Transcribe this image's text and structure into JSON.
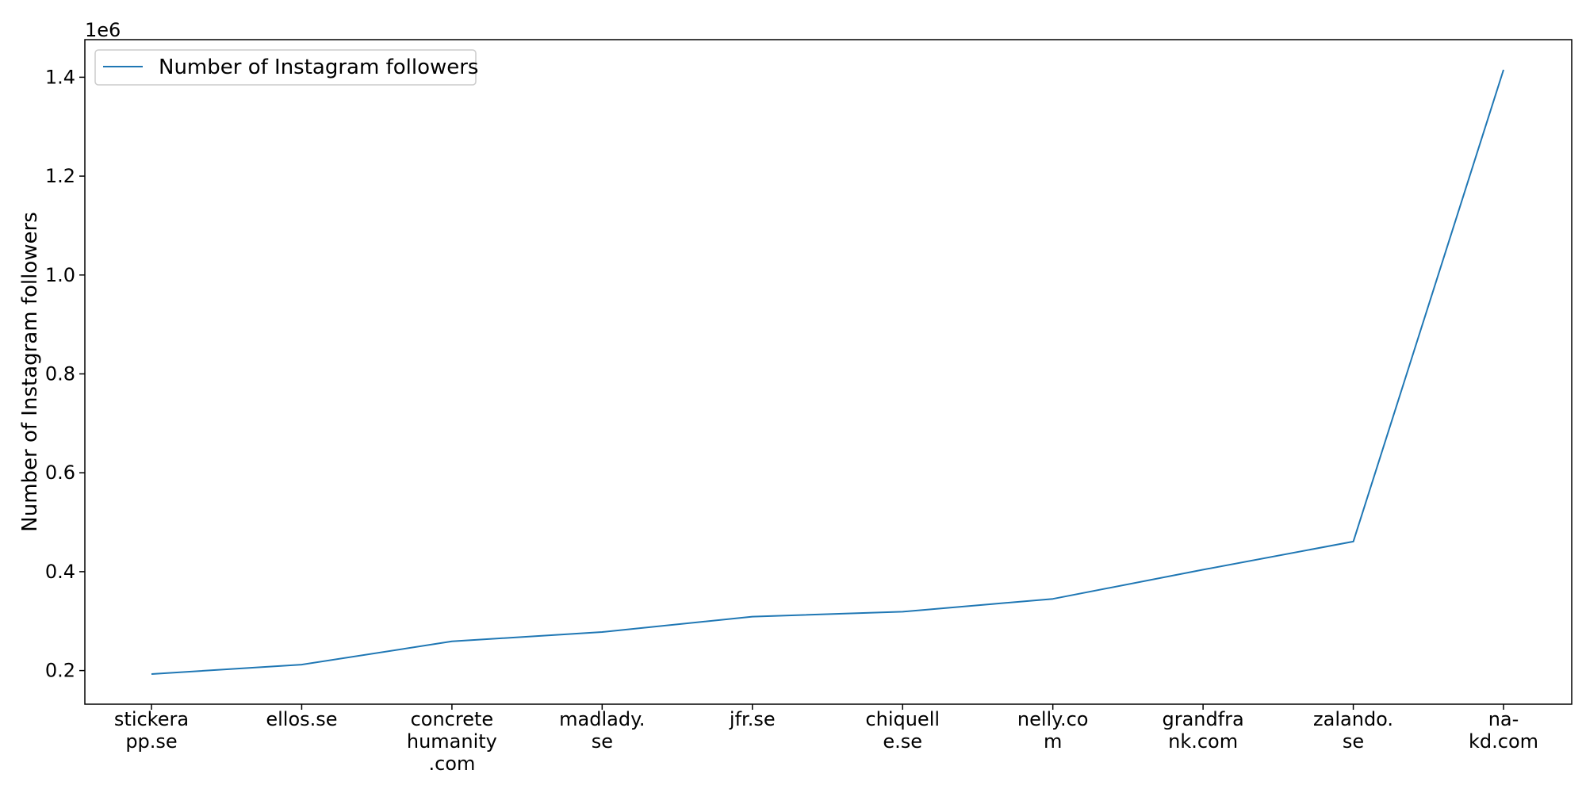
{
  "chart_data": {
    "type": "line",
    "categories": [
      "stickera\npp.se",
      "ellos.se",
      "concrete\nhumanity\n.com",
      "madlady.\nse",
      "jfr.se",
      "chiquell\ne.se",
      "nelly.co\nm",
      "grandfra\nnk.com",
      "zalando.\nse",
      "na-\nkd.com"
    ],
    "series": [
      {
        "name": "Number of Instagram followers",
        "values": [
          193000,
          212000,
          259000,
          278000,
          309000,
          319000,
          345000,
          404000,
          461000,
          1415000
        ],
        "color": "#1f77b4"
      }
    ],
    "title": "",
    "xlabel": "",
    "ylabel": "Number of Instagram followers",
    "y_offset_label": "1e6",
    "yticks": [
      200000,
      400000,
      600000,
      800000,
      1000000,
      1200000,
      1400000
    ],
    "ytick_labels": [
      "0.2",
      "0.4",
      "0.6",
      "0.8",
      "1.0",
      "1.2",
      "1.4"
    ],
    "ylim": [
      132000,
      1476000
    ],
    "grid": false,
    "legend_position": "upper left"
  }
}
